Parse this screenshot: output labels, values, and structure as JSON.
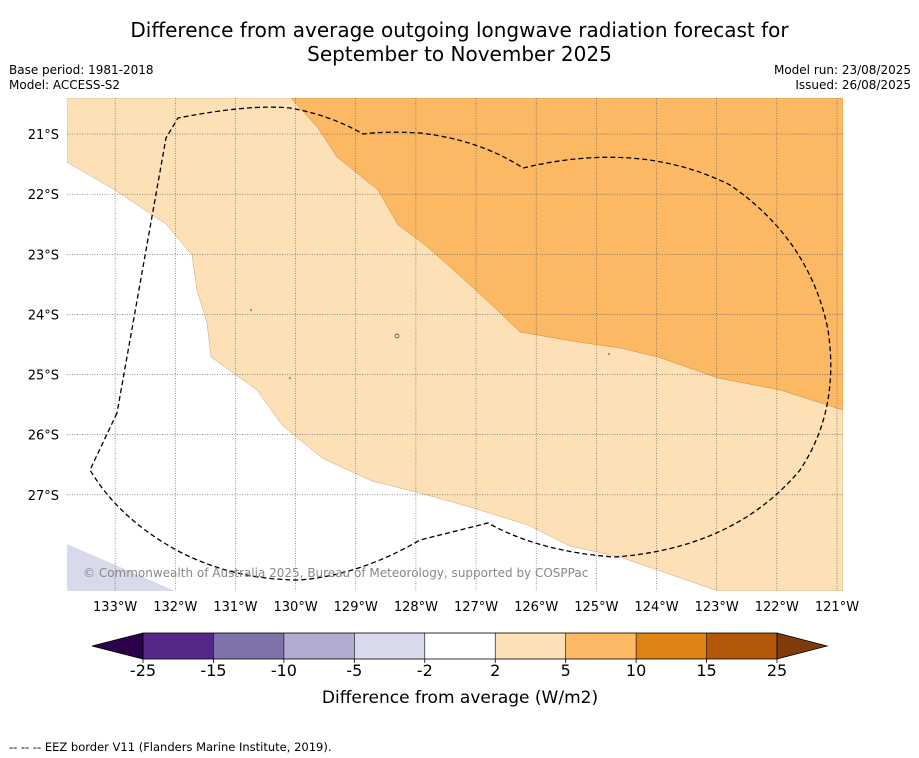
{
  "title_line1": "Difference from average outgoing longwave radiation forecast for",
  "title_line2": "September to November 2025",
  "base_period": "Base period: 1981-2018",
  "model": "Model: ACCESS-S2",
  "model_run": "Model run: 23/08/2025",
  "issued": "Issued: 26/08/2025",
  "copyright": "© Commonwealth of Australia 2025, Bureau of Meteorology, supported by COSPPac",
  "map": {
    "lon_range": [
      -133.8,
      -120.9
    ],
    "lat_range": [
      -28.6,
      -20.4
    ],
    "lat_ticks": [
      {
        "value": -21,
        "label": "21°S"
      },
      {
        "value": -22,
        "label": "22°S"
      },
      {
        "value": -23,
        "label": "23°S"
      },
      {
        "value": -24,
        "label": "24°S"
      },
      {
        "value": -25,
        "label": "25°S"
      },
      {
        "value": -26,
        "label": "26°S"
      },
      {
        "value": -27,
        "label": "27°S"
      }
    ],
    "lon_ticks": [
      {
        "value": -133,
        "label": "133°W"
      },
      {
        "value": -132,
        "label": "132°W"
      },
      {
        "value": -131,
        "label": "131°W"
      },
      {
        "value": -130,
        "label": "130°W"
      },
      {
        "value": -129,
        "label": "129°W"
      },
      {
        "value": -128,
        "label": "128°W"
      },
      {
        "value": -127,
        "label": "127°W"
      },
      {
        "value": -126,
        "label": "126°W"
      },
      {
        "value": -125,
        "label": "125°W"
      },
      {
        "value": -124,
        "label": "124°W"
      },
      {
        "value": -123,
        "label": "123°W"
      },
      {
        "value": -122,
        "label": "122°W"
      },
      {
        "value": -121,
        "label": "121°W"
      }
    ]
  },
  "colorbar": {
    "label": "Difference from average (W/m2)",
    "tick_labels": [
      "-25",
      "-15",
      "-10",
      "-5",
      "-2",
      "2",
      "5",
      "10",
      "15",
      "25"
    ],
    "under_color": "#2d004b",
    "over_color": "#7f3b08",
    "colors": [
      "#542788",
      "#8073ac",
      "#b2abd2",
      "#d8daeb",
      "#ffffff",
      "#fee0b6",
      "#fdb863",
      "#e08214",
      "#b35806"
    ]
  },
  "footnote": "--  --  -- EEZ border V11 (Flanders Marine Institute, 2019)."
}
